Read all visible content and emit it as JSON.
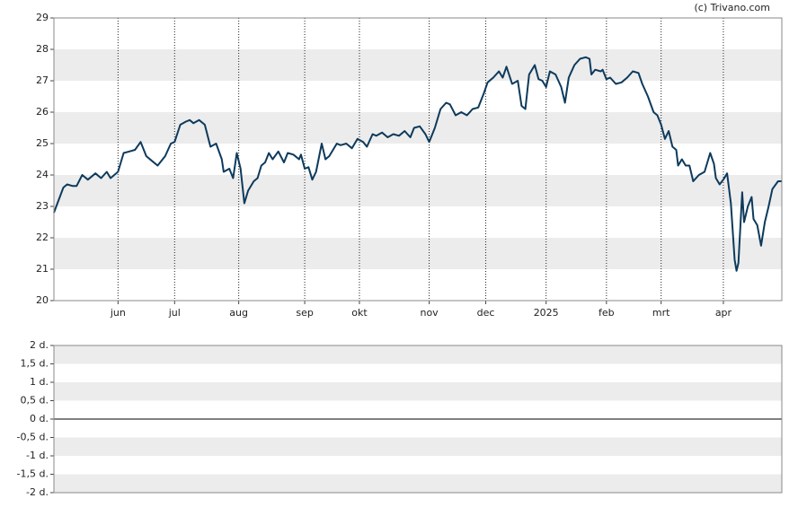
{
  "source": "(c) Trivano.com",
  "chart_data": [
    {
      "type": "line",
      "x": [
        0,
        5,
        7,
        10,
        12,
        15,
        18,
        22,
        25,
        28,
        30,
        34,
        37,
        40,
        43,
        46,
        49,
        52,
        55,
        59,
        62,
        64,
        67,
        70,
        72,
        74,
        77,
        80,
        83,
        86,
        89,
        90,
        93,
        95,
        97,
        99,
        101,
        103,
        106,
        108,
        110,
        112,
        114,
        116,
        119,
        122,
        124,
        127,
        130,
        131,
        133,
        135,
        137,
        139,
        142,
        144,
        146,
        148,
        150,
        152,
        155,
        158,
        161,
        164,
        166,
        169,
        171,
        174,
        177,
        180,
        183,
        186,
        189,
        191,
        194,
        197,
        199,
        202,
        205,
        208,
        210,
        213,
        216,
        219,
        222,
        225,
        228,
        230,
        233,
        236,
        238,
        240,
        243,
        246,
        248,
        250,
        252,
        255,
        257,
        259,
        261,
        263,
        266,
        269,
        271,
        273,
        276,
        279,
        282,
        284,
        285,
        287,
        290,
        291,
        293,
        295,
        298,
        301,
        304,
        307,
        310,
        312,
        315,
        318,
        320,
        322,
        324,
        326,
        328,
        330,
        331,
        333,
        335,
        337,
        339,
        342,
        345,
        348,
        350,
        351,
        353,
        355,
        357,
        359,
        361,
        362,
        363,
        365,
        366,
        368,
        370,
        371,
        373,
        375,
        377,
        379,
        381,
        384,
        386
      ],
      "series": [
        {
          "color": "#0d3a5c",
          "values": [
            22.8,
            23.6,
            23.7,
            23.65,
            23.65,
            24.0,
            23.85,
            24.05,
            23.9,
            24.1,
            23.9,
            24.1,
            24.7,
            24.75,
            24.8,
            25.05,
            24.6,
            24.45,
            24.3,
            24.6,
            25.0,
            25.05,
            25.6,
            25.7,
            25.75,
            25.65,
            25.75,
            25.6,
            24.9,
            25.0,
            24.5,
            24.1,
            24.2,
            23.9,
            24.7,
            24.2,
            23.1,
            23.5,
            23.8,
            23.9,
            24.3,
            24.4,
            24.7,
            24.5,
            24.75,
            24.4,
            24.7,
            24.65,
            24.5,
            24.65,
            24.2,
            24.25,
            23.85,
            24.1,
            25.0,
            24.5,
            24.6,
            24.8,
            25.0,
            24.95,
            25.0,
            24.85,
            25.15,
            25.05,
            24.9,
            25.3,
            25.25,
            25.35,
            25.2,
            25.3,
            25.25,
            25.4,
            25.2,
            25.5,
            25.55,
            25.3,
            25.05,
            25.5,
            26.1,
            26.3,
            26.25,
            25.9,
            26.0,
            25.9,
            26.1,
            26.15,
            26.6,
            26.95,
            27.1,
            27.3,
            27.1,
            27.45,
            26.9,
            27.0,
            26.2,
            26.1,
            27.2,
            27.5,
            27.05,
            27.0,
            26.8,
            27.3,
            27.2,
            26.8,
            26.3,
            27.1,
            27.5,
            27.7,
            27.75,
            27.7,
            27.2,
            27.35,
            27.3,
            27.35,
            27.05,
            27.1,
            26.9,
            26.95,
            27.1,
            27.3,
            27.25,
            26.9,
            26.5,
            26.0,
            25.9,
            25.6,
            25.15,
            25.4,
            24.9,
            24.8,
            24.3,
            24.5,
            24.3,
            24.3,
            23.8,
            24.0,
            24.1,
            24.7,
            24.35,
            23.9,
            23.7,
            23.85,
            24.05,
            23.1,
            21.3,
            20.95,
            21.2,
            23.45,
            22.5,
            23.0,
            23.3,
            22.6,
            22.4,
            21.75,
            22.5,
            23.0,
            23.55,
            23.8,
            23.8
          ]
        }
      ],
      "xlim": [
        0,
        386
      ],
      "xticks": [
        {
          "value": 34,
          "label": "jun"
        },
        {
          "value": 64,
          "label": "jul"
        },
        {
          "value": 98,
          "label": "aug"
        },
        {
          "value": 133,
          "label": "sep"
        },
        {
          "value": 162,
          "label": "okt"
        },
        {
          "value": 199,
          "label": "nov"
        },
        {
          "value": 229,
          "label": "dec"
        },
        {
          "value": 261,
          "label": "2025"
        },
        {
          "value": 293,
          "label": "feb"
        },
        {
          "value": 322,
          "label": "mrt"
        },
        {
          "value": 355,
          "label": "apr"
        }
      ],
      "ylim": [
        20,
        29
      ],
      "yticks": [
        20,
        21,
        22,
        23,
        24,
        25,
        26,
        27,
        28,
        29
      ]
    },
    {
      "type": "bar",
      "ylim": [
        -2,
        2
      ],
      "yticks": [
        {
          "value": -2,
          "label": "-2 d."
        },
        {
          "value": -1.5,
          "label": "-1,5 d."
        },
        {
          "value": -1,
          "label": "-1 d."
        },
        {
          "value": -0.5,
          "label": "-0,5 d."
        },
        {
          "value": 0,
          "label": "0 d."
        },
        {
          "value": 0.5,
          "label": "0,5 d."
        },
        {
          "value": 1,
          "label": "1 d."
        },
        {
          "value": 1.5,
          "label": "1,5 d."
        },
        {
          "value": 2,
          "label": "2 d."
        }
      ]
    }
  ]
}
